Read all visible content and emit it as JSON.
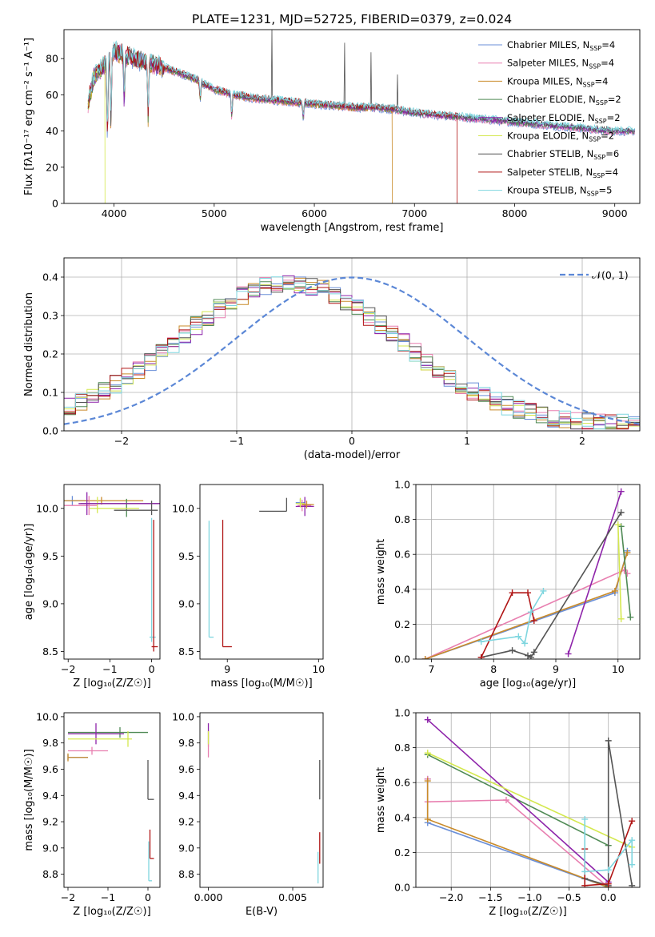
{
  "figure": {
    "title": "PLATE=1231, MJD=52725, FIBERID=0379, z=0.024"
  },
  "colors": {
    "Chabrier MILES": "#6a8fd8",
    "Salpeter MILES": "#e87fb0",
    "Kroupa MILES": "#c98b2a",
    "Chabrier ELODIE": "#4f8a55",
    "Salpeter ELODIE": "#8e24aa",
    "Kroupa ELODIE": "#d4e84e",
    "Chabrier STELIB": "#555555",
    "Salpeter STELIB": "#b01515",
    "Kroupa STELIB": "#7fd6df",
    "normal_curve": "#5b87d6"
  },
  "chart_data": [
    {
      "type": "line",
      "id": "spectrum",
      "xlabel": "wavelength [Angstrom, rest frame]",
      "ylabel": "Flux [fλ10⁻¹⁷ erg cm⁻² s⁻¹ A⁻¹]",
      "xlim": [
        3500,
        9250
      ],
      "ylim": [
        0,
        96
      ],
      "xticks": [
        4000,
        5000,
        6000,
        7000,
        8000,
        9000
      ],
      "yticks": [
        0,
        20,
        40,
        60,
        80
      ],
      "legend_position": "top-right",
      "legend": [
        {
          "model": "Chabrier MILES",
          "label": "Chabrier MILES, N",
          "sub": "SSP",
          "tail": "=4"
        },
        {
          "model": "Salpeter MILES",
          "label": "Salpeter MILES, N",
          "sub": "SSP",
          "tail": "=4"
        },
        {
          "model": "Kroupa MILES",
          "label": "Kroupa MILES, N",
          "sub": "SSP",
          "tail": "=4"
        },
        {
          "model": "Chabrier ELODIE",
          "label": "Chabrier ELODIE, N",
          "sub": "SSP",
          "tail": "=2"
        },
        {
          "model": "Salpeter ELODIE",
          "label": "Salpeter ELODIE, N",
          "sub": "SSP",
          "tail": "=2"
        },
        {
          "model": "Kroupa ELODIE",
          "label": "Kroupa ELODIE, N",
          "sub": "SSP",
          "tail": "=2"
        },
        {
          "model": "Chabrier STELIB",
          "label": "Chabrier STELIB, N",
          "sub": "SSP",
          "tail": "=6"
        },
        {
          "model": "Salpeter STELIB",
          "label": "Salpeter STELIB, N",
          "sub": "SSP",
          "tail": "=4"
        },
        {
          "model": "Kroupa STELIB",
          "label": "Kroupa STELIB, N",
          "sub": "SSP",
          "tail": "=5"
        }
      ],
      "continuum": {
        "x": [
          3740,
          3800,
          3900,
          4000,
          4100,
          4200,
          4300,
          4400,
          4500,
          4600,
          4800,
          5000,
          5200,
          5400,
          5600,
          5800,
          6000,
          6200,
          6400,
          6600,
          6800,
          7000,
          7200,
          7400,
          7600,
          7800,
          8000,
          8200,
          8400,
          8600,
          8800,
          9000,
          9200
        ],
        "y": [
          55,
          70,
          76,
          84,
          82,
          80,
          78,
          77,
          75,
          73,
          69,
          63,
          60,
          58,
          57,
          56,
          55,
          54,
          53,
          53,
          52,
          50,
          49,
          48,
          47,
          46,
          45,
          44,
          43,
          42,
          41,
          40,
          40
        ]
      },
      "absorption_lines": [
        {
          "x": 3934,
          "depth": 40
        },
        {
          "x": 3969,
          "depth": 35
        },
        {
          "x": 4102,
          "depth": 25
        },
        {
          "x": 4340,
          "depth": 30
        },
        {
          "x": 4861,
          "depth": 10
        },
        {
          "x": 5175,
          "depth": 12
        },
        {
          "x": 5890,
          "depth": 8
        }
      ],
      "emission_lines": [
        {
          "x": 5577,
          "height": 40
        },
        {
          "x": 6300,
          "height": 35
        },
        {
          "x": 6564,
          "height": 30
        },
        {
          "x": 6830,
          "height": 20
        }
      ],
      "series_ends": [
        {
          "model": "Kroupa ELODIE",
          "x_end": 3910
        },
        {
          "model": "Kroupa MILES",
          "x_end": 6780
        },
        {
          "model": "Salpeter STELIB",
          "x_end": 7425
        }
      ]
    },
    {
      "type": "step",
      "id": "residual-histogram",
      "xlabel": "(data-model)/error",
      "ylabel": "Normed distribution",
      "xlim": [
        -2.5,
        2.5
      ],
      "ylim": [
        0,
        0.45
      ],
      "xticks": [
        -2,
        -1,
        0,
        1,
        2
      ],
      "yticks": [
        0.0,
        0.1,
        0.2,
        0.3,
        0.4
      ],
      "grid": true,
      "bin_width": 0.1,
      "legend_position": "top-right",
      "legend": [
        {
          "label": "𝒩(0, 1)",
          "style": "dashed"
        }
      ],
      "reference_curve": {
        "type": "normal",
        "mean": 0,
        "sigma": 1
      },
      "histogram_mean": -0.55,
      "histogram_sigma": 0.95
    },
    {
      "type": "errorbar",
      "id": "age-vs-metallicity",
      "xlabel": "Z [log₁₀(Z/Z☉)]",
      "ylabel": "age [log₁₀(age/yr)]",
      "xlim": [
        -2.1,
        0.2
      ],
      "ylim": [
        8.42,
        10.25
      ],
      "xticks": [
        -2,
        -1,
        0
      ],
      "yticks": [
        8.5,
        9.0,
        9.5,
        10.0
      ],
      "points": [
        {
          "model": "Chabrier MILES",
          "x": -1.9,
          "y": 10.08,
          "xerr": [
            0.4,
            0.4
          ],
          "yerr": [
            0.05,
            0.05
          ]
        },
        {
          "model": "Kroupa MILES",
          "x": -1.2,
          "y": 10.08,
          "xerr": [
            0.9,
            1.0
          ],
          "yerr": [
            0.04,
            0.04
          ]
        },
        {
          "model": "Chabrier ELODIE",
          "x": -0.6,
          "y": 10.05,
          "xerr": [
            1.1,
            0.8
          ],
          "yerr": [
            0.14,
            0.05
          ]
        },
        {
          "model": "Salpeter MILES",
          "x": -1.5,
          "y": 10.03,
          "xerr": [
            0.6,
            0.2
          ],
          "yerr": [
            0.1,
            0.1
          ]
        },
        {
          "model": "Kroupa ELODIE",
          "x": -1.3,
          "y": 10.0,
          "xerr": [
            0.2,
            1.0
          ],
          "yerr": [
            0.05,
            0.12
          ]
        },
        {
          "model": "Salpeter ELODIE",
          "x": -1.55,
          "y": 10.05,
          "xerr": [
            0.2,
            1.75
          ],
          "yerr": [
            0.12,
            0.12
          ]
        },
        {
          "model": "Chabrier STELIB",
          "x": 0.0,
          "y": 9.98,
          "xerr": [
            0.9,
            0.15
          ],
          "yerr": [
            0.05,
            0.1
          ]
        },
        {
          "model": "Kroupa STELIB",
          "x": 0.0,
          "y": 8.65,
          "xerr": [
            0.05,
            0.1
          ],
          "yerr": [
            0.05,
            1.25
          ]
        },
        {
          "model": "Salpeter STELIB",
          "x": 0.05,
          "y": 8.55,
          "xerr": [
            0.05,
            0.1
          ],
          "yerr": [
            0.05,
            1.33
          ]
        }
      ]
    },
    {
      "type": "errorbar",
      "id": "age-vs-mass",
      "xlabel": "mass [log₁₀(M/M☉)]",
      "ylabel": "",
      "xlim": [
        8.7,
        10.05
      ],
      "ylim": [
        8.42,
        10.25
      ],
      "xticks": [
        9,
        10
      ],
      "yticks": [
        8.5,
        9.0,
        9.5,
        10.0
      ],
      "points": [
        {
          "model": "Chabrier MILES",
          "x": 9.8,
          "y": 10.06,
          "xerr": [
            0.05,
            0.05
          ],
          "yerr": [
            0.04,
            0.04
          ]
        },
        {
          "model": "Salpeter MILES",
          "x": 9.82,
          "y": 10.03,
          "xerr": [
            0.05,
            0.1
          ],
          "yerr": [
            0.06,
            0.06
          ]
        },
        {
          "model": "Salpeter ELODIE",
          "x": 9.85,
          "y": 10.02,
          "xerr": [
            0.1,
            0.1
          ],
          "yerr": [
            0.1,
            0.1
          ]
        },
        {
          "model": "Kroupa ELODIE",
          "x": 9.8,
          "y": 10.05,
          "xerr": [
            0.05,
            0.05
          ],
          "yerr": [
            0.04,
            0.06
          ]
        },
        {
          "model": "Kroupa MILES",
          "x": 9.87,
          "y": 10.04,
          "xerr": [
            0.05,
            0.08
          ],
          "yerr": [
            0.04,
            0.04
          ]
        },
        {
          "model": "Chabrier STELIB",
          "x": 9.65,
          "y": 9.97,
          "xerr": [
            0.3,
            0.0
          ],
          "yerr": [
            0.0,
            0.14
          ]
        },
        {
          "model": "Kroupa STELIB",
          "x": 8.8,
          "y": 8.65,
          "xerr": [
            0.0,
            0.05
          ],
          "yerr": [
            0.0,
            1.22
          ]
        },
        {
          "model": "Salpeter STELIB",
          "x": 8.95,
          "y": 8.55,
          "xerr": [
            0.0,
            0.1
          ],
          "yerr": [
            0.0,
            1.33
          ]
        }
      ]
    },
    {
      "type": "line",
      "id": "mass-weight-vs-age",
      "xlabel": "age [log₁₀(age/yr)]",
      "ylabel": "mass weight",
      "xlim": [
        6.75,
        10.35
      ],
      "ylim": [
        0,
        1.0
      ],
      "xticks": [
        7,
        8,
        9,
        10
      ],
      "yticks": [
        0.0,
        0.2,
        0.4,
        0.6,
        0.8,
        1.0
      ],
      "grid": true,
      "series": [
        {
          "model": "Chabrier MILES",
          "x": [
            6.9,
            9.95,
            10.15
          ],
          "y": [
            0.0,
            0.38,
            0.62
          ]
        },
        {
          "model": "Salpeter MILES",
          "x": [
            6.9,
            10.1,
            10.15
          ],
          "y": [
            0.0,
            0.51,
            0.49
          ]
        },
        {
          "model": "Kroupa MILES",
          "x": [
            6.9,
            9.95,
            10.15
          ],
          "y": [
            0.0,
            0.39,
            0.61
          ]
        },
        {
          "model": "Chabrier ELODIE",
          "x": [
            10.05,
            10.2
          ],
          "y": [
            0.76,
            0.24
          ]
        },
        {
          "model": "Salpeter ELODIE",
          "x": [
            9.2,
            10.05
          ],
          "y": [
            0.03,
            0.96
          ]
        },
        {
          "model": "Kroupa ELODIE",
          "x": [
            10.0,
            10.05
          ],
          "y": [
            0.77,
            0.23
          ]
        },
        {
          "model": "Chabrier STELIB",
          "x": [
            7.8,
            8.3,
            8.55,
            8.6,
            8.65,
            10.05
          ],
          "y": [
            0.01,
            0.05,
            0.02,
            0.01,
            0.04,
            0.84
          ]
        },
        {
          "model": "Salpeter STELIB",
          "x": [
            7.8,
            8.3,
            8.55,
            8.65
          ],
          "y": [
            0.01,
            0.38,
            0.38,
            0.22
          ]
        },
        {
          "model": "Kroupa STELIB",
          "x": [
            7.8,
            8.4,
            8.5,
            8.6,
            8.8
          ],
          "y": [
            0.1,
            0.13,
            0.09,
            0.27,
            0.39
          ]
        }
      ]
    },
    {
      "type": "errorbar",
      "id": "mass-vs-metallicity",
      "xlabel": "Z [log₁₀(Z/Z☉)]",
      "ylabel": "mass [log₁₀(M/M☉)]",
      "xlim": [
        -2.1,
        0.3
      ],
      "ylim": [
        8.7,
        10.03
      ],
      "xticks": [
        -2,
        -1,
        0
      ],
      "yticks": [
        8.8,
        9.0,
        9.2,
        9.4,
        9.6,
        9.8,
        10.0
      ],
      "points": [
        {
          "model": "Chabrier MILES",
          "x": -2.0,
          "y": 9.69,
          "xerr": [
            0.0,
            0.5
          ],
          "yerr": [
            0.02,
            0.02
          ]
        },
        {
          "model": "Salpeter MILES",
          "x": -1.4,
          "y": 9.74,
          "xerr": [
            0.6,
            0.4
          ],
          "yerr": [
            0.03,
            0.03
          ]
        },
        {
          "model": "Kroupa MILES",
          "x": -2.0,
          "y": 9.69,
          "xerr": [
            0.0,
            0.5
          ],
          "yerr": [
            0.03,
            0.03
          ]
        },
        {
          "model": "Chabrier ELODIE",
          "x": -0.7,
          "y": 9.88,
          "xerr": [
            1.3,
            0.7
          ],
          "yerr": [
            0.04,
            0.04
          ]
        },
        {
          "model": "Salpeter ELODIE",
          "x": -1.3,
          "y": 9.87,
          "xerr": [
            0.7,
            0.7
          ],
          "yerr": [
            0.08,
            0.08
          ]
        },
        {
          "model": "Kroupa ELODIE",
          "x": -0.5,
          "y": 9.83,
          "xerr": [
            1.5,
            0.1
          ],
          "yerr": [
            0.06,
            0.06
          ]
        },
        {
          "model": "Chabrier STELIB",
          "x": 0.0,
          "y": 9.37,
          "xerr": [
            0.0,
            0.15
          ],
          "yerr": [
            0.0,
            0.3
          ]
        },
        {
          "model": "Salpeter STELIB",
          "x": 0.05,
          "y": 8.92,
          "xerr": [
            0.0,
            0.1
          ],
          "yerr": [
            0.0,
            0.22
          ]
        },
        {
          "model": "Kroupa STELIB",
          "x": 0.02,
          "y": 8.75,
          "xerr": [
            0.0,
            0.08
          ],
          "yerr": [
            0.0,
            0.3
          ]
        }
      ]
    },
    {
      "type": "errorbar",
      "id": "mass-vs-extinction",
      "xlabel": "E(B-V)",
      "ylabel": "",
      "xlim": [
        -0.0005,
        0.0068
      ],
      "ylim": [
        8.7,
        10.03
      ],
      "xticks": [
        0.0,
        0.005
      ],
      "xticklabels": [
        "0.000",
        "0.005"
      ],
      "yticks": [
        8.8,
        9.0,
        9.2,
        9.4,
        9.6,
        9.8,
        10.0
      ],
      "points": [
        {
          "model": "Salpeter ELODIE",
          "x": 0.0,
          "y": 9.87,
          "xerr": [
            0,
            0
          ],
          "yerr": [
            0.08,
            0.08
          ]
        },
        {
          "model": "Kroupa ELODIE",
          "x": 0.0,
          "y": 9.83,
          "xerr": [
            0,
            0
          ],
          "yerr": [
            0.06,
            0.06
          ]
        },
        {
          "model": "Salpeter MILES",
          "x": 0.0,
          "y": 9.74,
          "xerr": [
            0,
            0
          ],
          "yerr": [
            0.05,
            0.05
          ]
        },
        {
          "model": "Chabrier STELIB",
          "x": 0.0066,
          "y": 9.52,
          "xerr": [
            0,
            0
          ],
          "yerr": [
            0.15,
            0.15
          ]
        },
        {
          "model": "Salpeter STELIB",
          "x": 0.0066,
          "y": 9.0,
          "xerr": [
            0,
            0
          ],
          "yerr": [
            0.12,
            0.12
          ]
        },
        {
          "model": "Kroupa STELIB",
          "x": 0.0065,
          "y": 8.85,
          "xerr": [
            0,
            0
          ],
          "yerr": [
            0.12,
            0.12
          ]
        }
      ]
    },
    {
      "type": "line",
      "id": "mass-weight-vs-metallicity",
      "xlabel": "Z [log₁₀(Z/Z☉)]",
      "ylabel": "mass weight",
      "xlim": [
        -2.45,
        0.4
      ],
      "ylim": [
        0,
        1.0
      ],
      "xticks": [
        -2.0,
        -1.5,
        -1.0,
        -0.5,
        0.0
      ],
      "xticklabels": [
        "−2.0",
        "−1.5",
        "−1.0",
        "−0.5",
        "0.0"
      ],
      "yticks": [
        0.0,
        0.2,
        0.4,
        0.6,
        0.8,
        1.0
      ],
      "grid": true,
      "series": [
        {
          "model": "Chabrier MILES",
          "x": [
            -2.3,
            -2.3,
            0.0
          ],
          "y": [
            0.62,
            0.37,
            0.0
          ]
        },
        {
          "model": "Salpeter MILES",
          "x": [
            -2.3,
            -2.3,
            -1.3,
            0.0
          ],
          "y": [
            0.62,
            0.49,
            0.5,
            0.0
          ]
        },
        {
          "model": "Kroupa MILES",
          "x": [
            -2.3,
            -2.3,
            0.0
          ],
          "y": [
            0.61,
            0.39,
            0.0
          ]
        },
        {
          "model": "Chabrier ELODIE",
          "x": [
            -2.3,
            0.0
          ],
          "y": [
            0.76,
            0.24
          ]
        },
        {
          "model": "Salpeter ELODIE",
          "x": [
            -2.3,
            0.0
          ],
          "y": [
            0.96,
            0.03
          ]
        },
        {
          "model": "Kroupa ELODIE",
          "x": [
            -2.3,
            0.3
          ],
          "y": [
            0.77,
            0.23
          ]
        },
        {
          "model": "Chabrier STELIB",
          "x": [
            -0.3,
            0.0,
            0.0,
            0.3
          ],
          "y": [
            0.05,
            0.01,
            0.84,
            0.01
          ]
        },
        {
          "model": "Salpeter STELIB",
          "x": [
            -0.3,
            -0.3,
            0.0,
            0.3
          ],
          "y": [
            0.22,
            0.01,
            0.02,
            0.38
          ]
        },
        {
          "model": "Kroupa STELIB",
          "x": [
            -0.3,
            -0.3,
            0.0,
            0.3,
            0.3
          ],
          "y": [
            0.39,
            0.09,
            0.1,
            0.27,
            0.13
          ]
        }
      ]
    }
  ]
}
